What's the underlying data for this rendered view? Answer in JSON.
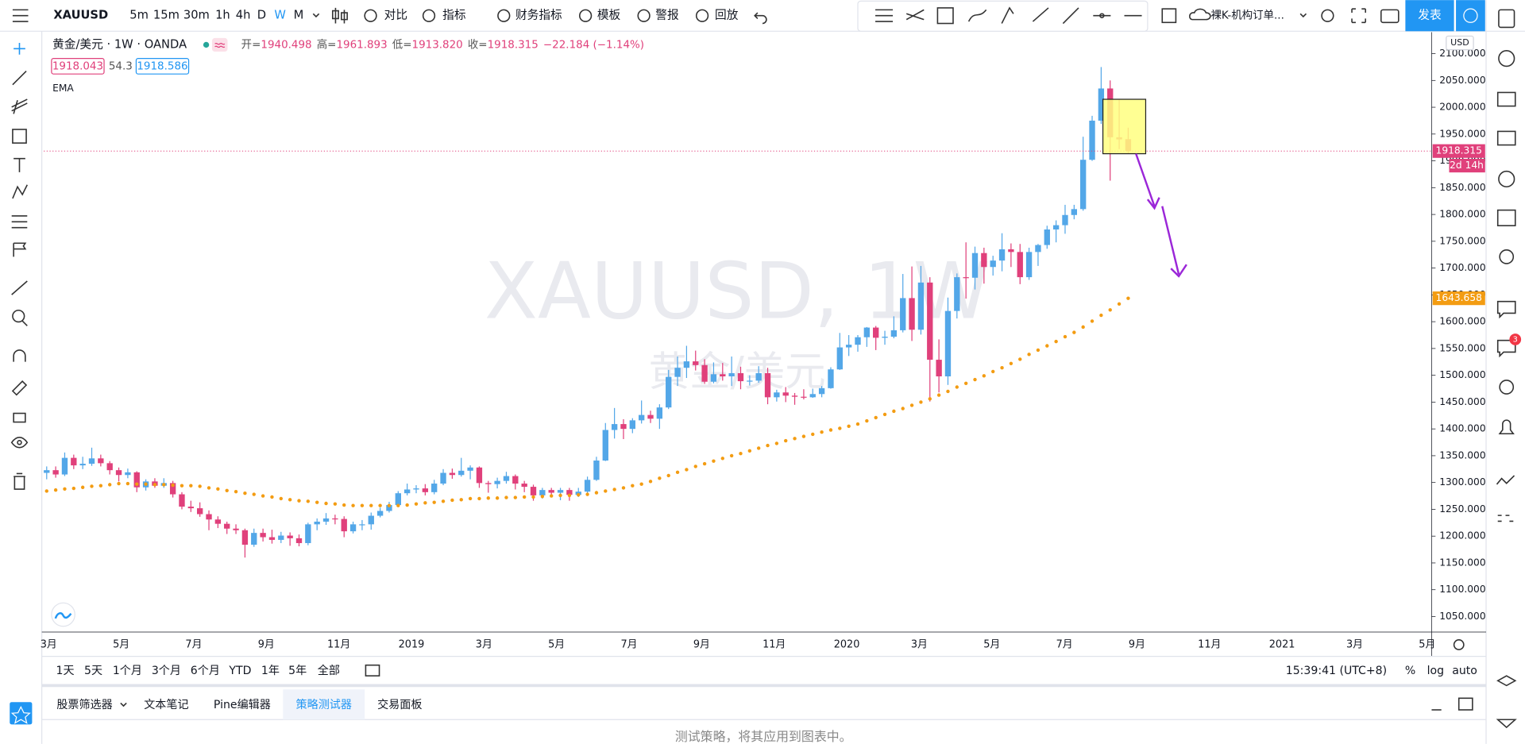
{
  "top_toolbar": {
    "symbol": "XAUUSD",
    "intervals": [
      "5m",
      "15m",
      "30m",
      "1h",
      "4h",
      "D",
      "W",
      "M"
    ],
    "active_interval": 6,
    "buttons": [
      "对比",
      "指标",
      "财务指标",
      "模板",
      "警报",
      "回放"
    ],
    "layout_name": "裸K-机构订单...",
    "publish": "发表"
  },
  "legend": {
    "symbol_name": "黄金/美元 · 1W · OANDA",
    "items": [
      {
        "label": "开=",
        "value": "1940.498"
      },
      {
        "label": "高=",
        "value": "1961.893"
      },
      {
        "label": "低=",
        "value": "1913.820"
      },
      {
        "label": "收=",
        "value": "1918.315"
      }
    ],
    "change": "−22.184 (−1.14%)",
    "bid": "1918.043",
    "spread": "54.3",
    "ask": "1918.586"
  },
  "watermark": {
    "title": "XAUUSD, 1W",
    "subtitle": "黄金/美元"
  },
  "chart_data": {
    "type": "candlestick",
    "currency": "USD",
    "up_color": "#53a7e8",
    "down_color": "#e0407b",
    "ohlc": [
      [
        1318,
        1330,
        1306,
        1323
      ],
      [
        1323,
        1330,
        1309,
        1315
      ],
      [
        1315,
        1356,
        1312,
        1346
      ],
      [
        1346,
        1352,
        1325,
        1332
      ],
      [
        1332,
        1348,
        1325,
        1335
      ],
      [
        1335,
        1365,
        1331,
        1345
      ],
      [
        1345,
        1352,
        1330,
        1336
      ],
      [
        1336,
        1340,
        1315,
        1323
      ],
      [
        1323,
        1328,
        1302,
        1314
      ],
      [
        1314,
        1326,
        1308,
        1319
      ],
      [
        1319,
        1321,
        1282,
        1291
      ],
      [
        1291,
        1306,
        1285,
        1302
      ],
      [
        1302,
        1308,
        1290,
        1294
      ],
      [
        1294,
        1308,
        1290,
        1299
      ],
      [
        1299,
        1303,
        1272,
        1278
      ],
      [
        1278,
        1282,
        1250,
        1255
      ],
      [
        1255,
        1266,
        1245,
        1252
      ],
      [
        1252,
        1263,
        1236,
        1241
      ],
      [
        1241,
        1248,
        1211,
        1231
      ],
      [
        1231,
        1237,
        1215,
        1223
      ],
      [
        1223,
        1227,
        1204,
        1214
      ],
      [
        1214,
        1222,
        1204,
        1211
      ],
      [
        1211,
        1214,
        1160,
        1184
      ],
      [
        1184,
        1214,
        1180,
        1206
      ],
      [
        1206,
        1214,
        1190,
        1198
      ],
      [
        1198,
        1212,
        1186,
        1193
      ],
      [
        1193,
        1208,
        1187,
        1201
      ],
      [
        1201,
        1207,
        1182,
        1196
      ],
      [
        1196,
        1203,
        1181,
        1187
      ],
      [
        1187,
        1225,
        1183,
        1222
      ],
      [
        1222,
        1233,
        1211,
        1227
      ],
      [
        1227,
        1243,
        1221,
        1233
      ],
      [
        1233,
        1240,
        1222,
        1232
      ],
      [
        1232,
        1237,
        1198,
        1209
      ],
      [
        1209,
        1227,
        1205,
        1222
      ],
      [
        1222,
        1230,
        1211,
        1222
      ],
      [
        1222,
        1244,
        1212,
        1238
      ],
      [
        1238,
        1253,
        1235,
        1247
      ],
      [
        1247,
        1264,
        1244,
        1258
      ],
      [
        1258,
        1284,
        1256,
        1280
      ],
      [
        1280,
        1298,
        1276,
        1287
      ],
      [
        1287,
        1295,
        1280,
        1289
      ],
      [
        1289,
        1297,
        1276,
        1282
      ],
      [
        1282,
        1305,
        1278,
        1298
      ],
      [
        1298,
        1325,
        1295,
        1318
      ],
      [
        1318,
        1326,
        1307,
        1314
      ],
      [
        1314,
        1346,
        1311,
        1322
      ],
      [
        1322,
        1332,
        1306,
        1328
      ],
      [
        1328,
        1330,
        1290,
        1299
      ],
      [
        1299,
        1303,
        1281,
        1297
      ],
      [
        1297,
        1309,
        1289,
        1303
      ],
      [
        1303,
        1320,
        1298,
        1312
      ],
      [
        1312,
        1315,
        1287,
        1298
      ],
      [
        1298,
        1303,
        1282,
        1292
      ],
      [
        1292,
        1296,
        1266,
        1276
      ],
      [
        1276,
        1290,
        1270,
        1286
      ],
      [
        1286,
        1290,
        1273,
        1281
      ],
      [
        1281,
        1290,
        1267,
        1286
      ],
      [
        1286,
        1290,
        1266,
        1277
      ],
      [
        1277,
        1290,
        1273,
        1283
      ],
      [
        1283,
        1311,
        1275,
        1305
      ],
      [
        1305,
        1348,
        1303,
        1341
      ],
      [
        1341,
        1411,
        1340,
        1398
      ],
      [
        1398,
        1439,
        1382,
        1409
      ],
      [
        1409,
        1418,
        1381,
        1400
      ],
      [
        1400,
        1420,
        1392,
        1416
      ],
      [
        1416,
        1453,
        1410,
        1426
      ],
      [
        1426,
        1434,
        1411,
        1419
      ],
      [
        1419,
        1446,
        1400,
        1440
      ],
      [
        1440,
        1510,
        1437,
        1497
      ],
      [
        1497,
        1535,
        1480,
        1514
      ],
      [
        1514,
        1555,
        1495,
        1526
      ],
      [
        1526,
        1546,
        1509,
        1519
      ],
      [
        1519,
        1530,
        1484,
        1488
      ],
      [
        1488,
        1524,
        1485,
        1502
      ],
      [
        1502,
        1523,
        1490,
        1498
      ],
      [
        1498,
        1535,
        1480,
        1504
      ],
      [
        1504,
        1516,
        1474,
        1489
      ],
      [
        1489,
        1500,
        1481,
        1490
      ],
      [
        1490,
        1517,
        1486,
        1504
      ],
      [
        1504,
        1514,
        1446,
        1459
      ],
      [
        1459,
        1473,
        1451,
        1468
      ],
      [
        1468,
        1478,
        1450,
        1462
      ],
      [
        1462,
        1467,
        1445,
        1460
      ],
      [
        1460,
        1474,
        1455,
        1459
      ],
      [
        1459,
        1475,
        1458,
        1465
      ],
      [
        1465,
        1480,
        1459,
        1476
      ],
      [
        1476,
        1515,
        1475,
        1511
      ],
      [
        1511,
        1579,
        1510,
        1552
      ],
      [
        1552,
        1575,
        1536,
        1557
      ],
      [
        1557,
        1575,
        1544,
        1571
      ],
      [
        1571,
        1590,
        1553,
        1589
      ],
      [
        1589,
        1592,
        1547,
        1570
      ],
      [
        1570,
        1583,
        1557,
        1572
      ],
      [
        1572,
        1610,
        1569,
        1584
      ],
      [
        1584,
        1689,
        1580,
        1644
      ],
      [
        1644,
        1703,
        1564,
        1585
      ],
      [
        1585,
        1704,
        1576,
        1673
      ],
      [
        1673,
        1683,
        1451,
        1529
      ],
      [
        1529,
        1567,
        1468,
        1498
      ],
      [
        1498,
        1645,
        1482,
        1620
      ],
      [
        1620,
        1690,
        1606,
        1683
      ],
      [
        1683,
        1748,
        1643,
        1682
      ],
      [
        1682,
        1740,
        1660,
        1728
      ],
      [
        1728,
        1738,
        1671,
        1702
      ],
      [
        1702,
        1723,
        1686,
        1714
      ],
      [
        1714,
        1765,
        1694,
        1735
      ],
      [
        1735,
        1746,
        1702,
        1730
      ],
      [
        1730,
        1745,
        1670,
        1683
      ],
      [
        1683,
        1738,
        1678,
        1730
      ],
      [
        1730,
        1745,
        1704,
        1743
      ],
      [
        1743,
        1779,
        1736,
        1772
      ],
      [
        1772,
        1789,
        1748,
        1780
      ],
      [
        1780,
        1818,
        1764,
        1799
      ],
      [
        1799,
        1818,
        1791,
        1810
      ],
      [
        1810,
        1945,
        1807,
        1902
      ],
      [
        1902,
        1984,
        1900,
        1975
      ],
      [
        1975,
        2075,
        1969,
        2035
      ],
      [
        2035,
        2050,
        1863,
        1944
      ],
      [
        1944,
        2015,
        1922,
        1940
      ],
      [
        1940.498,
        1961.893,
        1913.82,
        1918.315
      ]
    ],
    "series": [
      {
        "name": "EMA",
        "color": "#f39c12",
        "values": [
          1284,
          1286,
          1288,
          1289,
          1291,
          1293,
          1294,
          1296,
          1298,
          1298,
          1297,
          1297,
          1296,
          1296,
          1295,
          1294,
          1294,
          1293,
          1290,
          1288,
          1285,
          1283,
          1280,
          1278,
          1275,
          1273,
          1270,
          1268,
          1266,
          1265,
          1263,
          1261,
          1260,
          1258,
          1257,
          1257,
          1257,
          1257,
          1257,
          1257,
          1258,
          1260,
          1262,
          1263,
          1265,
          1267,
          1268,
          1270,
          1270,
          1271,
          1271,
          1272,
          1272,
          1273,
          1273,
          1274,
          1275,
          1276,
          1276,
          1277,
          1278,
          1281,
          1284,
          1287,
          1290,
          1294,
          1297,
          1302,
          1308,
          1313,
          1319,
          1324,
          1330,
          1335,
          1340,
          1345,
          1350,
          1354,
          1359,
          1364,
          1369,
          1373,
          1378,
          1382,
          1386,
          1390,
          1394,
          1398,
          1401,
          1405,
          1409,
          1415,
          1421,
          1427,
          1433,
          1438,
          1444,
          1450,
          1456,
          1463,
          1470,
          1478,
          1485,
          1492,
          1499,
          1507,
          1514,
          1522,
          1530,
          1539,
          1547,
          1555,
          1563,
          1572,
          1580,
          1590,
          1601,
          1612,
          1622,
          1633,
          1643.658
        ]
      }
    ],
    "ylim": [
      1021,
      2140
    ],
    "yticks": [
      {
        "value": 2100,
        "label": "2100.000"
      },
      {
        "value": 2050,
        "label": "2050.000"
      },
      {
        "value": 2000,
        "label": "2000.000"
      },
      {
        "value": 1950,
        "label": "1950.000"
      },
      {
        "value": 1900,
        "label": "1900.000"
      },
      {
        "value": 1850,
        "label": "1850.000"
      },
      {
        "value": 1800,
        "label": "1800.000"
      },
      {
        "value": 1750,
        "label": "1750.000"
      },
      {
        "value": 1700,
        "label": "1700.000"
      },
      {
        "value": 1650,
        "label": "1650.000"
      },
      {
        "value": 1600,
        "label": "1600.000"
      },
      {
        "value": 1550,
        "label": "1550.000"
      },
      {
        "value": 1500,
        "label": "1500.000"
      },
      {
        "value": 1450,
        "label": "1450.000"
      },
      {
        "value": 1400,
        "label": "1400.000"
      },
      {
        "value": 1350,
        "label": "1350.000"
      },
      {
        "value": 1300,
        "label": "1300.000"
      },
      {
        "value": 1250,
        "label": "1250.000"
      },
      {
        "value": 1200,
        "label": "1200.000"
      },
      {
        "value": 1150,
        "label": "1150.000"
      },
      {
        "value": 1100,
        "label": "1100.000"
      },
      {
        "value": 1050,
        "label": "1050.000"
      }
    ],
    "x_labels": [
      "3月",
      "5月",
      "7月",
      "9月",
      "11月",
      "2019",
      "3月",
      "5月",
      "7月",
      "9月",
      "11月",
      "2020",
      "3月",
      "5月",
      "7月",
      "9月",
      "11月",
      "2021",
      "3月",
      "5月"
    ],
    "price_labels": [
      {
        "value": 1918.315,
        "label": "1918.315",
        "color": "#e0407b"
      },
      {
        "value": 1643.658,
        "label": "1643.658",
        "color": "#f39c12"
      }
    ],
    "countdown": "2d 14h",
    "grid": false
  },
  "bottom_bar": {
    "ranges": [
      "1天",
      "5天",
      "1个月",
      "3个月",
      "6个月",
      "YTD",
      "1年",
      "5年",
      "全部"
    ],
    "clock": "15:39:41 (UTC+8)",
    "scale_options": [
      "%",
      "log",
      "auto"
    ]
  },
  "panel_tabs": {
    "tabs": [
      "股票筛选器",
      "文本笔记",
      "Pine编辑器",
      "策略测试器",
      "交易面板"
    ],
    "active": 3,
    "message": "测试策略，将其应用到图表中。"
  },
  "right_toolbar": {
    "alert_badge": "3"
  }
}
